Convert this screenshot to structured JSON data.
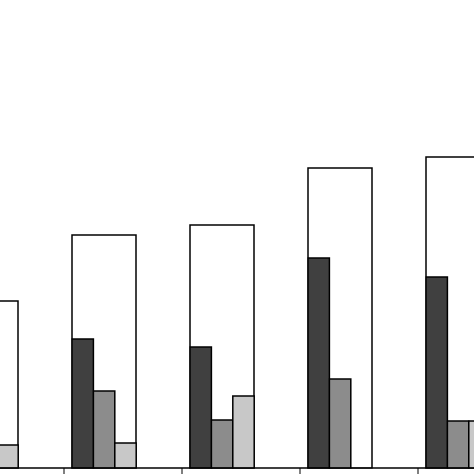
{
  "chart_data": {
    "type": "bar",
    "categories": [
      null,
      null,
      null,
      null,
      null
    ],
    "series": [
      {
        "color": "#ffffff",
        "values": [
          167,
          233,
          243,
          300,
          311
        ]
      },
      {
        "color": "#404040",
        "values": [
          null,
          129,
          121,
          210,
          191
        ]
      },
      {
        "color": "#8c8c8c",
        "values": [
          null,
          77,
          48,
          89,
          47
        ]
      },
      {
        "color": "#c8c8c8",
        "values": [
          23,
          25,
          72,
          0,
          47
        ]
      }
    ],
    "ylim": [
      0,
      468
    ]
  }
}
